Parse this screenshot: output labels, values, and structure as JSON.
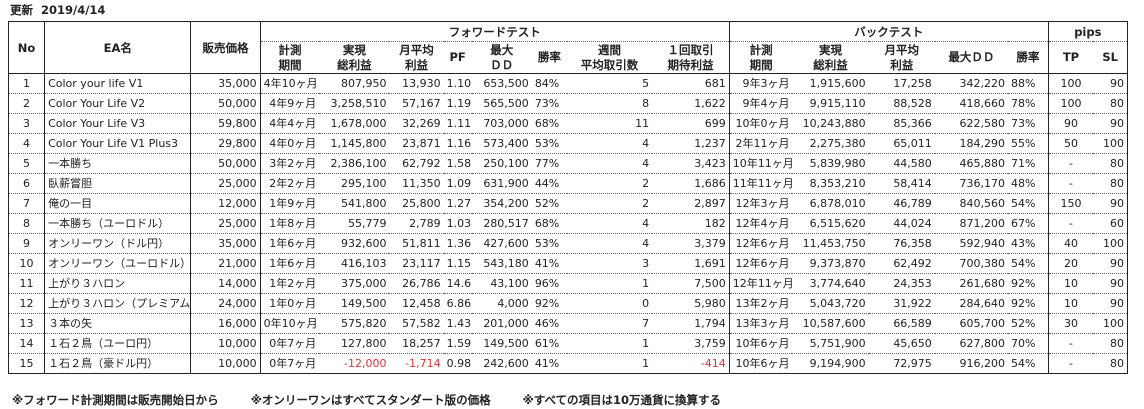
{
  "updated_label": "更新",
  "updated_date": "2019/4/14",
  "headers": {
    "no": "No",
    "ea": "EA名",
    "price": "販売価格",
    "forward": "フォワードテスト",
    "back": "バックテスト",
    "pips": "pips",
    "f": [
      "計測|期間",
      "実現|総利益",
      "月平均|利益",
      "PF",
      "最大|ＤＤ",
      "勝率",
      "週間|平均取引数",
      "１回取引|期待利益"
    ],
    "b": [
      "計測|期間",
      "実現|総利益",
      "月平均|利益",
      "最大ＤＤ",
      "勝率"
    ],
    "p": [
      "TP",
      "SL"
    ]
  },
  "rows": [
    [
      "1",
      "Color your life V1",
      "35,000",
      "4年10ヶ月",
      "807,950",
      "13,930",
      "1.10",
      "653,500",
      "84%",
      "5",
      "681",
      "9年3ヶ月",
      "1,915,600",
      "17,258",
      "342,220",
      "88%",
      "100",
      "90"
    ],
    [
      "2",
      "Color Your Life V2",
      "50,000",
      "4年9ヶ月",
      "3,258,510",
      "57,167",
      "1.19",
      "565,500",
      "73%",
      "8",
      "1,622",
      "9年4ヶ月",
      "9,915,110",
      "88,528",
      "418,660",
      "78%",
      "100",
      "80"
    ],
    [
      "3",
      "Color Your Life V3",
      "59,800",
      "4年4ヶ月",
      "1,678,000",
      "32,269",
      "1.11",
      "703,000",
      "68%",
      "11",
      "699",
      "10年0ヶ月",
      "10,243,880",
      "85,366",
      "622,580",
      "73%",
      "90",
      "90"
    ],
    [
      "4",
      "Color Your Life V1 Plus3",
      "29,800",
      "4年0ヶ月",
      "1,145,800",
      "23,871",
      "1.16",
      "573,400",
      "53%",
      "4",
      "1,237",
      "2年11ヶ月",
      "2,275,380",
      "65,011",
      "184,290",
      "55%",
      "50",
      "100"
    ],
    [
      "5",
      "一本勝ち",
      "50,000",
      "3年2ヶ月",
      "2,386,100",
      "62,792",
      "1.58",
      "250,100",
      "77%",
      "4",
      "3,423",
      "10年11ヶ月",
      "5,839,980",
      "44,580",
      "465,880",
      "71%",
      "-",
      "80"
    ],
    [
      "6",
      "臥薪嘗胆",
      "25,000",
      "2年2ヶ月",
      "295,100",
      "11,350",
      "1.09",
      "631,900",
      "44%",
      "2",
      "1,686",
      "11年11ヶ月",
      "8,353,210",
      "58,414",
      "736,170",
      "48%",
      "-",
      "80"
    ],
    [
      "7",
      "俺の一目",
      "12,000",
      "1年9ヶ月",
      "541,800",
      "25,800",
      "1.27",
      "354,200",
      "52%",
      "2",
      "2,897",
      "12年3ヶ月",
      "6,878,010",
      "46,789",
      "840,560",
      "54%",
      "150",
      "90"
    ],
    [
      "8",
      "一本勝ち（ユーロドル）",
      "25,000",
      "1年8ヶ月",
      "55,779",
      "2,789",
      "1.03",
      "280,517",
      "68%",
      "4",
      "182",
      "12年4ヶ月",
      "6,515,620",
      "44,024",
      "871,200",
      "67%",
      "-",
      "60"
    ],
    [
      "9",
      "オンリーワン（ドル円）",
      "35,000",
      "1年6ヶ月",
      "932,600",
      "51,811",
      "1.36",
      "427,600",
      "53%",
      "4",
      "3,379",
      "12年6ヶ月",
      "11,453,750",
      "76,358",
      "592,940",
      "43%",
      "40",
      "100"
    ],
    [
      "10",
      "オンリーワン（ユーロドル）",
      "21,000",
      "1年6ヶ月",
      "416,103",
      "23,117",
      "1.15",
      "543,180",
      "41%",
      "3",
      "1,691",
      "12年6ヶ月",
      "9,373,870",
      "62,492",
      "700,380",
      "54%",
      "20",
      "90"
    ],
    [
      "11",
      "上がり３ハロン",
      "14,000",
      "1年2ヶ月",
      "375,000",
      "26,786",
      "14.6",
      "43,100",
      "96%",
      "1",
      "7,500",
      "12年11ヶ月",
      "3,774,640",
      "24,353",
      "261,680",
      "92%",
      "10",
      "90"
    ],
    [
      "12",
      "上がり３ハロン（プレミアム",
      "24,000",
      "1年0ヶ月",
      "149,500",
      "12,458",
      "6.86",
      "4,000",
      "92%",
      "0",
      "5,980",
      "13年2ヶ月",
      "5,043,720",
      "31,922",
      "284,640",
      "92%",
      "10",
      "90"
    ],
    [
      "13",
      "３本の矢",
      "16,000",
      "0年10ヶ月",
      "575,820",
      "57,582",
      "1.43",
      "201,000",
      "46%",
      "7",
      "1,794",
      "13年3ヶ月",
      "10,587,600",
      "66,589",
      "605,700",
      "52%",
      "30",
      "100"
    ],
    [
      "14",
      "１石２鳥（ユーロ円）",
      "10,000",
      "0年7ヶ月",
      "127,800",
      "18,257",
      "1.59",
      "149,500",
      "61%",
      "1",
      "3,759",
      "10年6ヶ月",
      "5,751,900",
      "45,650",
      "627,800",
      "70%",
      "-",
      "80"
    ],
    [
      "15",
      "１石２鳥（豪ドル円）",
      "10,000",
      "0年7ヶ月",
      "-12,000",
      "-1,714",
      "0.98",
      "242,600",
      "41%",
      "1",
      "-414",
      "10年6ヶ月",
      "9,194,900",
      "72,975",
      "916,200",
      "54%",
      "-",
      "80"
    ]
  ],
  "negative_color": "#e03030",
  "notes": [
    "※フォワード計測期間は販売開始日から",
    "※オンリーワンはすべてスタンダート版の価格",
    "※すべての項目は10万通貨に換算する"
  ]
}
